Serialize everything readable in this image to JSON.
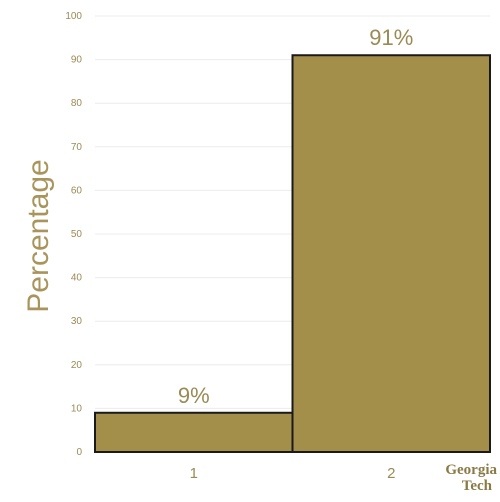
{
  "chart_data": {
    "type": "bar",
    "categories": [
      "1",
      "2"
    ],
    "values": [
      9,
      91
    ],
    "data_labels": [
      "9%",
      "91%"
    ],
    "title": "",
    "xlabel": "",
    "ylabel": "Percentage",
    "ylim": [
      0,
      100
    ],
    "yticks": [
      0,
      10,
      20,
      30,
      40,
      50,
      60,
      70,
      80,
      90,
      100
    ],
    "grid": true,
    "legend": "none"
  },
  "colors": {
    "bar_fill": "#a48f4a",
    "bar_stroke": "#1a1a1a",
    "text": "#9a8a55",
    "grid": "#ececec"
  },
  "logo": {
    "line1": "Georgia",
    "line2": "Tech"
  }
}
